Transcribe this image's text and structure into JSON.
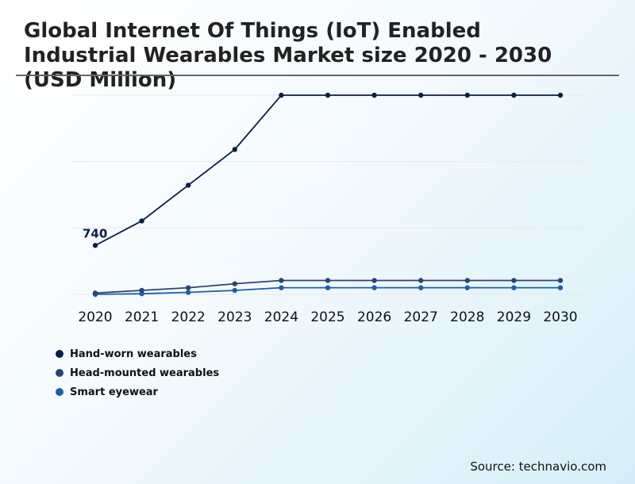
{
  "chart_data": {
    "type": "line",
    "title": "Global Internet Of Things (IoT) Enabled Industrial Wearables Market size 2020 - 2030 (USD Million)",
    "categories": [
      "2020",
      "2021",
      "2022",
      "2023",
      "2024",
      "2025",
      "2026",
      "2027",
      "2028",
      "2029",
      "2030"
    ],
    "series": [
      {
        "name": "Hand-worn wearables",
        "color": "#0a1f44",
        "values": [
          740,
          1110,
          1650,
          2190,
          3010,
          3010,
          3010,
          3010,
          3010,
          3010,
          3010
        ]
      },
      {
        "name": "Head-mounted wearables",
        "color": "#2b4472",
        "values": [
          20,
          60,
          100,
          160,
          210,
          210,
          210,
          210,
          210,
          210,
          210
        ]
      },
      {
        "name": "Smart eyewear",
        "color": "#1b5fa8",
        "values": [
          0,
          10,
          30,
          60,
          100,
          100,
          100,
          100,
          100,
          100,
          100
        ]
      }
    ],
    "data_labels": [
      {
        "series": 0,
        "index": 0,
        "text": "740"
      }
    ],
    "ylim": [
      0,
      3010
    ],
    "xlabel": "",
    "ylabel": "",
    "grid": "horizontal",
    "legend": "bottom-left"
  },
  "footer": {
    "source": "Source: technavio.com"
  }
}
